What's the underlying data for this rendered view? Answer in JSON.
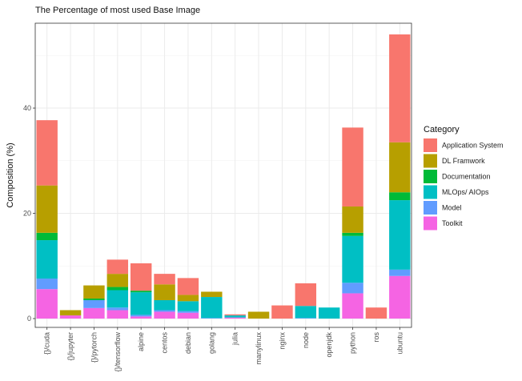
{
  "chart_data": {
    "type": "bar",
    "stacked": true,
    "title": "The Percentage of most used Base Image",
    "xlabel": "",
    "ylabel": "Composition (%)",
    "ylim": [
      0,
      55
    ],
    "yticks": [
      0,
      20,
      40
    ],
    "grid": true,
    "legend_position": "right",
    "legend_title": "Category",
    "categories": [
      "{}/cuda",
      "{}/jupyter",
      "{}/pytorch",
      "{}/tensorflow",
      "alpine",
      "centos",
      "debian",
      "golang",
      "julia",
      "manylinux",
      "nginx",
      "node",
      "openjdk",
      "python",
      "ros",
      "ubuntu"
    ],
    "series": [
      {
        "name": "Application System",
        "color": "#F8766D",
        "values": [
          12.4,
          0,
          0,
          2.7,
          5.2,
          2.0,
          3.2,
          0,
          0.2,
          0,
          2.5,
          4.3,
          0,
          15.0,
          2.1,
          20.5
        ]
      },
      {
        "name": "DL Framwork",
        "color": "#B79F00",
        "values": [
          9.0,
          1.0,
          2.5,
          2.5,
          0,
          3.0,
          1.2,
          1.0,
          0,
          1.3,
          0,
          0,
          0,
          5.0,
          0,
          9.5
        ]
      },
      {
        "name": "Documentation",
        "color": "#00BA38",
        "values": [
          1.4,
          0,
          0.3,
          0.6,
          0.3,
          0,
          0,
          0,
          0,
          0,
          0,
          0,
          0,
          0.6,
          0,
          1.5
        ]
      },
      {
        "name": "MLOps/ AIOps",
        "color": "#00BFC4",
        "values": [
          7.3,
          0,
          0,
          3.3,
          4.3,
          1.9,
          1.9,
          4.0,
          0.4,
          0,
          0,
          2.3,
          2.1,
          8.9,
          0,
          13.2
        ]
      },
      {
        "name": "Model",
        "color": "#619CFF",
        "values": [
          2.0,
          0,
          1.5,
          0.5,
          0.3,
          0.3,
          0.3,
          0.1,
          0,
          0,
          0,
          0.1,
          0,
          2.0,
          0,
          1.2
        ]
      },
      {
        "name": "Toolkit",
        "color": "#F564E3",
        "values": [
          5.6,
          0.6,
          2.0,
          1.6,
          0.4,
          1.3,
          1.1,
          0,
          0.2,
          0,
          0,
          0,
          0,
          4.8,
          0,
          8.1
        ]
      }
    ]
  }
}
